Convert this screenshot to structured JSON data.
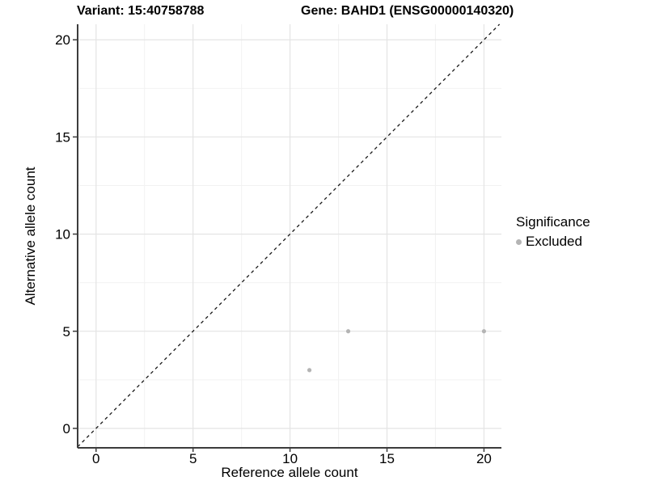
{
  "chart_data": {
    "type": "scatter",
    "titles": {
      "variant": "Variant: 15:40758788",
      "gene": "Gene: BAHD1 (ENSG00000140320)"
    },
    "xlabel": "Reference allele count",
    "ylabel": "Alternative allele count",
    "xlim": [
      -0.95,
      20.9
    ],
    "ylim": [
      -1.0,
      20.8
    ],
    "xticks": [
      0,
      5,
      10,
      15,
      20
    ],
    "yticks": [
      0,
      5,
      10,
      15,
      20
    ],
    "minor_xticks": [
      2.5,
      7.5,
      12.5,
      17.5
    ],
    "minor_yticks": [
      2.5,
      7.5,
      12.5,
      17.5
    ],
    "grid": true,
    "series": [
      {
        "name": "Excluded",
        "points": [
          {
            "x": 11,
            "y": 3
          },
          {
            "x": 13,
            "y": 5
          },
          {
            "x": 20,
            "y": 5
          }
        ]
      }
    ],
    "identity_line": {
      "slope": 1,
      "intercept": 0,
      "style": "dashed"
    },
    "legend": {
      "title": "Significance",
      "position": "right",
      "entries": [
        {
          "label": "Excluded",
          "color": "#b4b4b4"
        }
      ]
    },
    "colors": {
      "point": "#b4b4b4",
      "grid_major": "#e4e4e4",
      "grid_minor": "#f2f2f2",
      "axis": "#3c3c3c",
      "identity_line": "#1a1a1a",
      "text": "#000000"
    }
  }
}
